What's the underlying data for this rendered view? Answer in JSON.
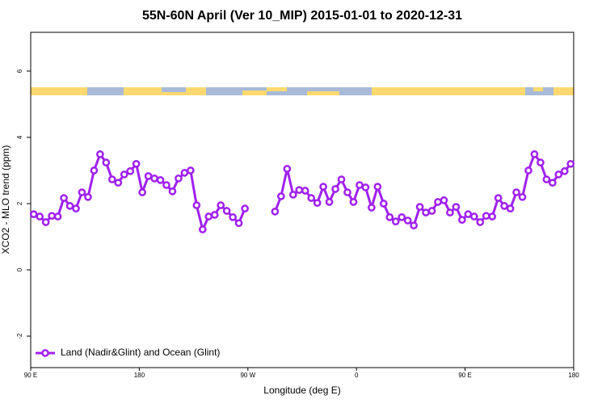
{
  "chart_data": {
    "type": "line",
    "title": "55N-60N April (Ver 10_MIP)   2015-01-01 to 2020-12-31",
    "x_label": "Longitude (deg E)",
    "y_label": "XCO2 - MLO trend (ppm)",
    "x": [
      92.5,
      97.5,
      102.5,
      107.5,
      112.5,
      117.5,
      122.5,
      127.5,
      132.5,
      137.5,
      142.5,
      147.5,
      152.5,
      157.5,
      162.5,
      167.5,
      172.5,
      177.5,
      182.5,
      187.5,
      192.5,
      197.5,
      202.5,
      207.5,
      212.5,
      217.5,
      222.5,
      227.5,
      232.5,
      237.5,
      242.5,
      247.5,
      252.5,
      257.5,
      262.5,
      267.5,
      272.5,
      277.5,
      282.5,
      287.5,
      292.5,
      297.5,
      302.5,
      307.5,
      312.5,
      317.5,
      322.5,
      327.5,
      332.5,
      337.5,
      342.5,
      347.5,
      352.5,
      357.5,
      362.5,
      367.5,
      372.5,
      377.5,
      382.5,
      387.5,
      392.5,
      397.5,
      402.5,
      407.5,
      412.5,
      417.5,
      422.5,
      427.5,
      432.5,
      437.5,
      442.5,
      447.5,
      452.5,
      457.5,
      462.5,
      467.5,
      472.5,
      477.5,
      482.5,
      487.5,
      492.5,
      497.5,
      502.5,
      507.5,
      512.5,
      517.5,
      522.5,
      527.5,
      532.5,
      537.5
    ],
    "series": [
      {
        "name": "Land (Nadir&Glint) and Ocean (Glint)",
        "color": "#a020f0",
        "values": [
          1.68,
          1.61,
          1.44,
          1.63,
          1.61,
          2.17,
          1.93,
          1.85,
          2.34,
          2.2,
          3.0,
          3.49,
          3.24,
          2.73,
          2.63,
          2.88,
          2.98,
          3.2,
          2.34,
          2.83,
          2.76,
          2.71,
          2.56,
          2.37,
          2.76,
          2.93,
          3.0,
          1.95,
          1.22,
          1.61,
          1.66,
          1.95,
          1.78,
          1.59,
          1.41,
          1.85,
          null,
          null,
          null,
          null,
          1.76,
          2.22,
          3.05,
          2.27,
          2.41,
          2.39,
          2.17,
          2.02,
          2.51,
          2.05,
          2.44,
          2.73,
          2.34,
          2.05,
          2.56,
          2.49,
          1.88,
          2.51,
          2.0,
          1.59,
          1.46,
          1.59,
          1.49,
          1.34,
          1.9,
          1.73,
          1.78,
          2.05,
          2.1,
          1.73,
          1.9,
          1.51,
          1.68,
          1.61,
          1.44,
          1.63,
          1.61,
          2.17,
          1.93,
          1.85,
          2.34,
          2.2,
          3.0,
          3.49,
          3.24,
          2.73,
          2.63,
          2.88,
          2.98,
          3.2
        ]
      }
    ],
    "xlim": [
      90,
      540
    ],
    "xticks": [
      {
        "value": 90,
        "label": "90 E"
      },
      180,
      {
        "value": 270,
        "label": "90 W"
      },
      {
        "value": 360,
        "label": "0"
      },
      {
        "value": 450,
        "label": "90 E"
      },
      {
        "value": 540,
        "label": "180"
      }
    ],
    "ylim": [
      -2.95,
      7.17
    ],
    "yticks": [
      -2,
      0,
      2,
      4,
      6
    ],
    "legend": "bottom-left"
  }
}
